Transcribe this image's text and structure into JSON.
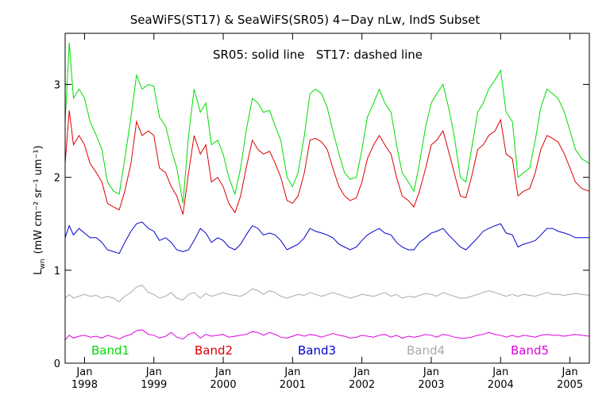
{
  "chart_data": {
    "type": "line",
    "title": "SeaWiFS(ST17) & SeaWiFS(SR05) 4−Day nLw, IndS Subset",
    "annotation": "SR05: solid line   ST17: dashed line",
    "ylabel_main": "L",
    "ylabel_sub": "wn",
    "ylabel_units": "(mW cm⁻² sr⁻¹ um⁻¹)",
    "xlabel": "",
    "xlim": [
      1997.72,
      2005.28
    ],
    "ylim": [
      0,
      3.55
    ],
    "yticks": [
      "0",
      "1",
      "2",
      "3"
    ],
    "ytick_values": [
      0,
      1,
      2,
      3
    ],
    "xtick_top": [
      "Jan",
      "Jan",
      "Jan",
      "Jan",
      "Jan",
      "Jan",
      "Jan",
      "Jan"
    ],
    "xtick_bottom": [
      "1998",
      "1999",
      "2000",
      "2001",
      "2002",
      "2003",
      "2004",
      "2005"
    ],
    "xtick_values": [
      1998,
      1999,
      2000,
      2001,
      2002,
      2003,
      2004,
      2005
    ],
    "grid": false,
    "legend_position": "bottom",
    "series": [
      {
        "name": "Band1",
        "color": "#00dd00",
        "x": [
          1997.72,
          1997.78,
          1997.84,
          1997.92,
          1998.0,
          1998.08,
          1998.17,
          1998.25,
          1998.33,
          1998.42,
          1998.5,
          1998.58,
          1998.67,
          1998.75,
          1998.83,
          1998.92,
          1999.0,
          1999.08,
          1999.17,
          1999.25,
          1999.33,
          1999.42,
          1999.5,
          1999.58,
          1999.67,
          1999.75,
          1999.83,
          1999.92,
          2000.0,
          2000.08,
          2000.17,
          2000.25,
          2000.33,
          2000.42,
          2000.5,
          2000.58,
          2000.67,
          2000.75,
          2000.83,
          2000.92,
          2001.0,
          2001.08,
          2001.17,
          2001.25,
          2001.33,
          2001.42,
          2001.5,
          2001.58,
          2001.67,
          2001.75,
          2001.83,
          2001.92,
          2002.0,
          2002.08,
          2002.17,
          2002.25,
          2002.33,
          2002.42,
          2002.5,
          2002.58,
          2002.67,
          2002.75,
          2002.83,
          2002.92,
          2003.0,
          2003.08,
          2003.17,
          2003.25,
          2003.33,
          2003.42,
          2003.5,
          2003.58,
          2003.67,
          2003.75,
          2003.83,
          2003.92,
          2004.0,
          2004.08,
          2004.17,
          2004.25,
          2004.33,
          2004.42,
          2004.5,
          2004.58,
          2004.67,
          2004.75,
          2004.83,
          2004.92,
          2005.0,
          2005.08,
          2005.17,
          2005.28
        ],
        "values": [
          2.6,
          3.45,
          2.85,
          2.95,
          2.85,
          2.6,
          2.45,
          2.3,
          1.95,
          1.85,
          1.82,
          2.2,
          2.65,
          3.1,
          2.95,
          3.0,
          2.98,
          2.65,
          2.55,
          2.3,
          2.1,
          1.72,
          2.45,
          2.95,
          2.7,
          2.8,
          2.35,
          2.4,
          2.25,
          2.0,
          1.82,
          2.1,
          2.5,
          2.85,
          2.8,
          2.7,
          2.72,
          2.55,
          2.4,
          2.0,
          1.9,
          2.05,
          2.45,
          2.9,
          2.95,
          2.9,
          2.75,
          2.5,
          2.25,
          2.05,
          1.98,
          2.0,
          2.3,
          2.65,
          2.8,
          2.95,
          2.8,
          2.7,
          2.35,
          2.05,
          1.95,
          1.85,
          2.15,
          2.55,
          2.8,
          2.9,
          3.0,
          2.75,
          2.45,
          2.0,
          1.95,
          2.3,
          2.7,
          2.8,
          2.95,
          3.05,
          3.15,
          2.7,
          2.6,
          2.0,
          2.05,
          2.1,
          2.4,
          2.75,
          2.95,
          2.9,
          2.85,
          2.7,
          2.5,
          2.3,
          2.2,
          2.15
        ]
      },
      {
        "name": "Band2",
        "color": "#dd0000",
        "x": [
          1997.72,
          1997.78,
          1997.84,
          1997.92,
          1998.0,
          1998.08,
          1998.17,
          1998.25,
          1998.33,
          1998.42,
          1998.5,
          1998.58,
          1998.67,
          1998.75,
          1998.83,
          1998.92,
          1999.0,
          1999.08,
          1999.17,
          1999.25,
          1999.33,
          1999.42,
          1999.5,
          1999.58,
          1999.67,
          1999.75,
          1999.83,
          1999.92,
          2000.0,
          2000.08,
          2000.17,
          2000.25,
          2000.33,
          2000.42,
          2000.5,
          2000.58,
          2000.67,
          2000.75,
          2000.83,
          2000.92,
          2001.0,
          2001.08,
          2001.17,
          2001.25,
          2001.33,
          2001.42,
          2001.5,
          2001.58,
          2001.67,
          2001.75,
          2001.83,
          2001.92,
          2002.0,
          2002.08,
          2002.17,
          2002.25,
          2002.33,
          2002.42,
          2002.5,
          2002.58,
          2002.67,
          2002.75,
          2002.83,
          2002.92,
          2003.0,
          2003.08,
          2003.17,
          2003.25,
          2003.33,
          2003.42,
          2003.5,
          2003.58,
          2003.67,
          2003.75,
          2003.83,
          2003.92,
          2004.0,
          2004.08,
          2004.17,
          2004.25,
          2004.33,
          2004.42,
          2004.5,
          2004.58,
          2004.67,
          2004.75,
          2004.83,
          2004.92,
          2005.0,
          2005.08,
          2005.17,
          2005.28
        ],
        "values": [
          2.15,
          2.72,
          2.35,
          2.45,
          2.35,
          2.15,
          2.05,
          1.95,
          1.72,
          1.68,
          1.65,
          1.85,
          2.15,
          2.6,
          2.45,
          2.5,
          2.45,
          2.1,
          2.05,
          1.9,
          1.8,
          1.6,
          2.05,
          2.45,
          2.25,
          2.35,
          1.95,
          2.0,
          1.9,
          1.72,
          1.62,
          1.8,
          2.1,
          2.4,
          2.3,
          2.25,
          2.28,
          2.15,
          2.0,
          1.75,
          1.72,
          1.8,
          2.05,
          2.4,
          2.42,
          2.38,
          2.3,
          2.1,
          1.9,
          1.8,
          1.75,
          1.78,
          1.95,
          2.2,
          2.35,
          2.45,
          2.35,
          2.25,
          2.0,
          1.8,
          1.75,
          1.68,
          1.85,
          2.1,
          2.35,
          2.4,
          2.5,
          2.28,
          2.05,
          1.8,
          1.78,
          2.0,
          2.3,
          2.35,
          2.45,
          2.5,
          2.62,
          2.25,
          2.2,
          1.8,
          1.85,
          1.88,
          2.05,
          2.3,
          2.45,
          2.42,
          2.38,
          2.25,
          2.1,
          1.95,
          1.88,
          1.85
        ]
      },
      {
        "name": "Band3",
        "color": "#0000cc",
        "x": [
          1997.72,
          1997.78,
          1997.84,
          1997.92,
          1998.0,
          1998.08,
          1998.17,
          1998.25,
          1998.33,
          1998.42,
          1998.5,
          1998.58,
          1998.67,
          1998.75,
          1998.83,
          1998.92,
          1999.0,
          1999.08,
          1999.17,
          1999.25,
          1999.33,
          1999.42,
          1999.5,
          1999.58,
          1999.67,
          1999.75,
          1999.83,
          1999.92,
          2000.0,
          2000.08,
          2000.17,
          2000.25,
          2000.33,
          2000.42,
          2000.5,
          2000.58,
          2000.67,
          2000.75,
          2000.83,
          2000.92,
          2001.0,
          2001.08,
          2001.17,
          2001.25,
          2001.33,
          2001.42,
          2001.5,
          2001.58,
          2001.67,
          2001.75,
          2001.83,
          2001.92,
          2002.0,
          2002.08,
          2002.17,
          2002.25,
          2002.33,
          2002.42,
          2002.5,
          2002.58,
          2002.67,
          2002.75,
          2002.83,
          2002.92,
          2003.0,
          2003.08,
          2003.17,
          2003.25,
          2003.33,
          2003.42,
          2003.5,
          2003.58,
          2003.67,
          2003.75,
          2003.83,
          2003.92,
          2004.0,
          2004.08,
          2004.17,
          2004.25,
          2004.33,
          2004.42,
          2004.5,
          2004.58,
          2004.67,
          2004.75,
          2004.83,
          2004.92,
          2005.0,
          2005.08,
          2005.17,
          2005.28
        ],
        "values": [
          1.35,
          1.48,
          1.38,
          1.45,
          1.4,
          1.35,
          1.35,
          1.3,
          1.22,
          1.2,
          1.18,
          1.3,
          1.42,
          1.5,
          1.52,
          1.45,
          1.42,
          1.32,
          1.35,
          1.3,
          1.22,
          1.2,
          1.22,
          1.32,
          1.45,
          1.4,
          1.3,
          1.35,
          1.32,
          1.25,
          1.22,
          1.28,
          1.38,
          1.48,
          1.45,
          1.38,
          1.4,
          1.38,
          1.32,
          1.22,
          1.25,
          1.28,
          1.35,
          1.45,
          1.42,
          1.4,
          1.38,
          1.35,
          1.28,
          1.25,
          1.22,
          1.25,
          1.32,
          1.38,
          1.42,
          1.45,
          1.4,
          1.38,
          1.3,
          1.25,
          1.22,
          1.22,
          1.3,
          1.35,
          1.4,
          1.42,
          1.45,
          1.38,
          1.32,
          1.25,
          1.22,
          1.28,
          1.35,
          1.42,
          1.45,
          1.48,
          1.5,
          1.4,
          1.38,
          1.25,
          1.28,
          1.3,
          1.32,
          1.38,
          1.45,
          1.45,
          1.42,
          1.4,
          1.38,
          1.35,
          1.35,
          1.35
        ]
      },
      {
        "name": "Band4",
        "color": "#aaaaaa",
        "x": [
          1997.72,
          1997.78,
          1997.84,
          1997.92,
          1998.0,
          1998.08,
          1998.17,
          1998.25,
          1998.33,
          1998.42,
          1998.5,
          1998.58,
          1998.67,
          1998.75,
          1998.83,
          1998.92,
          1999.0,
          1999.08,
          1999.17,
          1999.25,
          1999.33,
          1999.42,
          1999.5,
          1999.58,
          1999.67,
          1999.75,
          1999.83,
          1999.92,
          2000.0,
          2000.08,
          2000.17,
          2000.25,
          2000.33,
          2000.42,
          2000.5,
          2000.58,
          2000.67,
          2000.75,
          2000.83,
          2000.92,
          2001.0,
          2001.08,
          2001.17,
          2001.25,
          2001.33,
          2001.42,
          2001.5,
          2001.58,
          2001.67,
          2001.75,
          2001.83,
          2001.92,
          2002.0,
          2002.08,
          2002.17,
          2002.25,
          2002.33,
          2002.42,
          2002.5,
          2002.58,
          2002.67,
          2002.75,
          2002.83,
          2002.92,
          2003.0,
          2003.08,
          2003.17,
          2003.25,
          2003.33,
          2003.42,
          2003.5,
          2003.58,
          2003.67,
          2003.75,
          2003.83,
          2003.92,
          2004.0,
          2004.08,
          2004.17,
          2004.25,
          2004.33,
          2004.42,
          2004.5,
          2004.58,
          2004.67,
          2004.75,
          2004.83,
          2004.92,
          2005.0,
          2005.08,
          2005.17,
          2005.28
        ],
        "values": [
          0.7,
          0.74,
          0.7,
          0.72,
          0.74,
          0.72,
          0.73,
          0.7,
          0.72,
          0.7,
          0.66,
          0.72,
          0.76,
          0.82,
          0.84,
          0.76,
          0.74,
          0.7,
          0.72,
          0.76,
          0.7,
          0.68,
          0.74,
          0.76,
          0.7,
          0.75,
          0.72,
          0.74,
          0.76,
          0.74,
          0.73,
          0.72,
          0.75,
          0.8,
          0.78,
          0.74,
          0.78,
          0.76,
          0.72,
          0.7,
          0.72,
          0.74,
          0.73,
          0.76,
          0.74,
          0.72,
          0.74,
          0.76,
          0.74,
          0.72,
          0.7,
          0.72,
          0.74,
          0.73,
          0.72,
          0.74,
          0.76,
          0.72,
          0.74,
          0.7,
          0.72,
          0.71,
          0.73,
          0.75,
          0.74,
          0.72,
          0.76,
          0.74,
          0.72,
          0.7,
          0.7,
          0.72,
          0.74,
          0.76,
          0.78,
          0.76,
          0.74,
          0.72,
          0.74,
          0.72,
          0.74,
          0.73,
          0.72,
          0.74,
          0.76,
          0.74,
          0.74,
          0.73,
          0.74,
          0.75,
          0.74,
          0.73
        ]
      },
      {
        "name": "Band5",
        "color": "#dd00dd",
        "x": [
          1997.72,
          1997.78,
          1997.84,
          1997.92,
          1998.0,
          1998.08,
          1998.17,
          1998.25,
          1998.33,
          1998.42,
          1998.5,
          1998.58,
          1998.67,
          1998.75,
          1998.83,
          1998.92,
          1999.0,
          1999.08,
          1999.17,
          1999.25,
          1999.33,
          1999.42,
          1999.5,
          1999.58,
          1999.67,
          1999.75,
          1999.83,
          1999.92,
          2000.0,
          2000.08,
          2000.17,
          2000.25,
          2000.33,
          2000.42,
          2000.5,
          2000.58,
          2000.67,
          2000.75,
          2000.83,
          2000.92,
          2001.0,
          2001.08,
          2001.17,
          2001.25,
          2001.33,
          2001.42,
          2001.5,
          2001.58,
          2001.67,
          2001.75,
          2001.83,
          2001.92,
          2002.0,
          2002.08,
          2002.17,
          2002.25,
          2002.33,
          2002.42,
          2002.5,
          2002.58,
          2002.67,
          2002.75,
          2002.83,
          2002.92,
          2003.0,
          2003.08,
          2003.17,
          2003.25,
          2003.33,
          2003.42,
          2003.5,
          2003.58,
          2003.67,
          2003.75,
          2003.83,
          2003.92,
          2004.0,
          2004.08,
          2004.17,
          2004.25,
          2004.33,
          2004.42,
          2004.5,
          2004.58,
          2004.67,
          2004.75,
          2004.83,
          2004.92,
          2005.0,
          2005.08,
          2005.17,
          2005.28
        ],
        "values": [
          0.25,
          0.3,
          0.27,
          0.29,
          0.3,
          0.28,
          0.29,
          0.27,
          0.3,
          0.28,
          0.26,
          0.29,
          0.31,
          0.35,
          0.36,
          0.31,
          0.3,
          0.27,
          0.29,
          0.33,
          0.28,
          0.26,
          0.31,
          0.33,
          0.27,
          0.31,
          0.29,
          0.3,
          0.31,
          0.28,
          0.29,
          0.3,
          0.31,
          0.34,
          0.33,
          0.3,
          0.33,
          0.31,
          0.28,
          0.27,
          0.29,
          0.31,
          0.29,
          0.31,
          0.3,
          0.28,
          0.3,
          0.32,
          0.3,
          0.29,
          0.27,
          0.28,
          0.3,
          0.29,
          0.28,
          0.3,
          0.31,
          0.28,
          0.3,
          0.27,
          0.29,
          0.28,
          0.29,
          0.31,
          0.3,
          0.28,
          0.31,
          0.3,
          0.28,
          0.27,
          0.27,
          0.28,
          0.3,
          0.31,
          0.33,
          0.31,
          0.3,
          0.28,
          0.3,
          0.28,
          0.3,
          0.29,
          0.28,
          0.3,
          0.31,
          0.3,
          0.3,
          0.29,
          0.3,
          0.31,
          0.3,
          0.29
        ]
      }
    ]
  }
}
